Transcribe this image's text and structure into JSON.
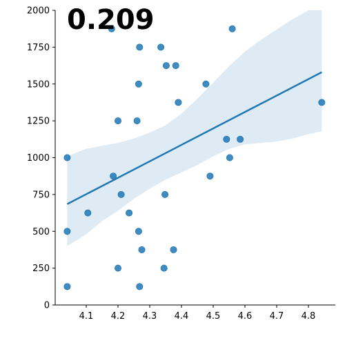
{
  "chart_data": {
    "type": "scatter",
    "title": "0.209",
    "xlabel": "",
    "ylabel": "",
    "xlim": [
      4.0,
      4.88
    ],
    "ylim": [
      0,
      2000
    ],
    "x_ticks": [
      4.1,
      4.2,
      4.3,
      4.4,
      4.5,
      4.6,
      4.7,
      4.8
    ],
    "x_tick_labels": [
      "4.1",
      "4.2",
      "4.3",
      "4.4",
      "4.5",
      "4.6",
      "4.7",
      "4.8"
    ],
    "y_ticks": [
      0,
      250,
      500,
      750,
      1000,
      1250,
      1500,
      1750,
      2000
    ],
    "y_tick_labels": [
      "0",
      "250",
      "500",
      "750",
      "1000",
      "1250",
      "1500",
      "1750",
      "2000"
    ],
    "grid": false,
    "colors": {
      "points": "#1f77b4",
      "line": "#1f77b4",
      "band": "#1f77b4"
    },
    "points": [
      {
        "x": 4.04,
        "y": 125
      },
      {
        "x": 4.04,
        "y": 500
      },
      {
        "x": 4.04,
        "y": 1000
      },
      {
        "x": 4.105,
        "y": 625
      },
      {
        "x": 4.18,
        "y": 1875
      },
      {
        "x": 4.185,
        "y": 875
      },
      {
        "x": 4.2,
        "y": 250
      },
      {
        "x": 4.2,
        "y": 1250
      },
      {
        "x": 4.21,
        "y": 750
      },
      {
        "x": 4.235,
        "y": 625
      },
      {
        "x": 4.26,
        "y": 1250
      },
      {
        "x": 4.265,
        "y": 500
      },
      {
        "x": 4.265,
        "y": 1500
      },
      {
        "x": 4.268,
        "y": 1750
      },
      {
        "x": 4.268,
        "y": 125
      },
      {
        "x": 4.275,
        "y": 375
      },
      {
        "x": 4.335,
        "y": 1750
      },
      {
        "x": 4.345,
        "y": 250
      },
      {
        "x": 4.348,
        "y": 750
      },
      {
        "x": 4.352,
        "y": 1625
      },
      {
        "x": 4.375,
        "y": 375
      },
      {
        "x": 4.382,
        "y": 1625
      },
      {
        "x": 4.39,
        "y": 1375
      },
      {
        "x": 4.477,
        "y": 1500
      },
      {
        "x": 4.49,
        "y": 875
      },
      {
        "x": 4.542,
        "y": 1125
      },
      {
        "x": 4.552,
        "y": 1000
      },
      {
        "x": 4.56,
        "y": 1875
      },
      {
        "x": 4.585,
        "y": 1125
      },
      {
        "x": 4.842,
        "y": 1375
      }
    ],
    "regression_line": {
      "x": [
        4.04,
        4.842
      ],
      "y": [
        685,
        1580
      ]
    },
    "confidence_band": {
      "x": [
        4.04,
        4.1,
        4.15,
        4.2,
        4.25,
        4.3,
        4.35,
        4.4,
        4.45,
        4.5,
        4.55,
        4.6,
        4.65,
        4.7,
        4.75,
        4.8,
        4.842
      ],
      "lower": [
        400,
        480,
        570,
        640,
        720,
        790,
        850,
        900,
        950,
        1010,
        1060,
        1090,
        1100,
        1110,
        1130,
        1160,
        1180
      ],
      "upper": [
        1010,
        1060,
        1080,
        1100,
        1130,
        1170,
        1220,
        1300,
        1400,
        1510,
        1620,
        1720,
        1800,
        1870,
        1940,
        2000,
        2000
      ]
    }
  }
}
